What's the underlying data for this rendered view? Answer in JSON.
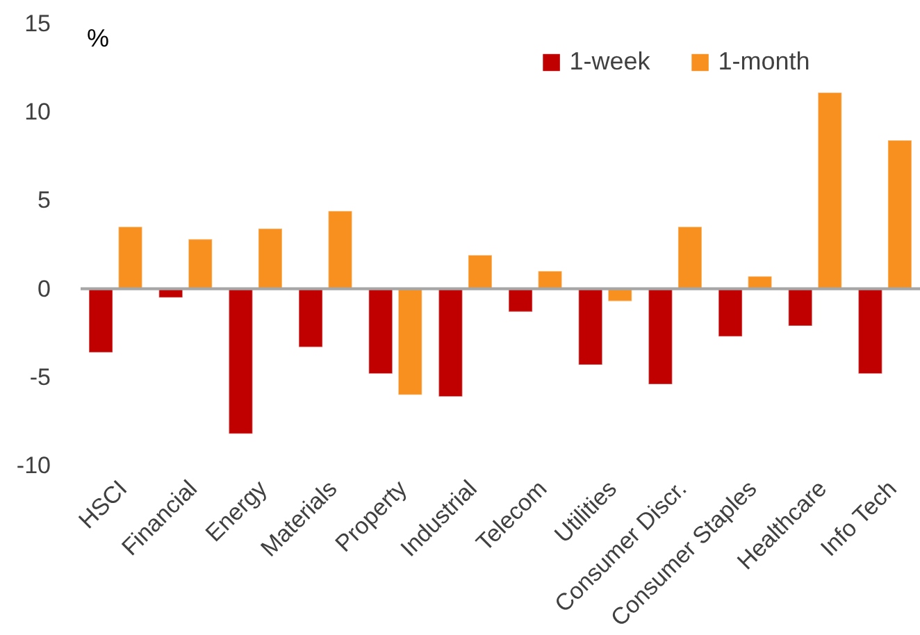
{
  "chart_data": {
    "type": "bar",
    "ylabel": "%",
    "categories": [
      "HSCI",
      "Financial",
      "Energy",
      "Materials",
      "Property",
      "Industrial",
      "Telecom",
      "Utilities",
      "Consumer Discr.",
      "Consumer Staples",
      "Healthcare",
      "Info Tech"
    ],
    "series": [
      {
        "name": "1-week",
        "color": "#c00000",
        "values": [
          -3.6,
          -0.5,
          -8.2,
          -3.3,
          -4.8,
          -6.1,
          -1.3,
          -4.3,
          -5.4,
          -2.7,
          -2.1,
          -4.8
        ]
      },
      {
        "name": "1-month",
        "color": "#f7901e",
        "values": [
          3.5,
          2.8,
          3.4,
          4.4,
          -6.0,
          1.9,
          1.0,
          -0.7,
          3.5,
          0.7,
          11.1,
          8.4
        ]
      }
    ],
    "ylim": [
      -10,
      15
    ],
    "yticks": [
      -10,
      -5,
      0,
      5,
      10,
      15
    ],
    "ref_lines": [
      {
        "axis": "y",
        "value": 0,
        "color": "#a6a6a6"
      }
    ],
    "legend": "top right"
  }
}
